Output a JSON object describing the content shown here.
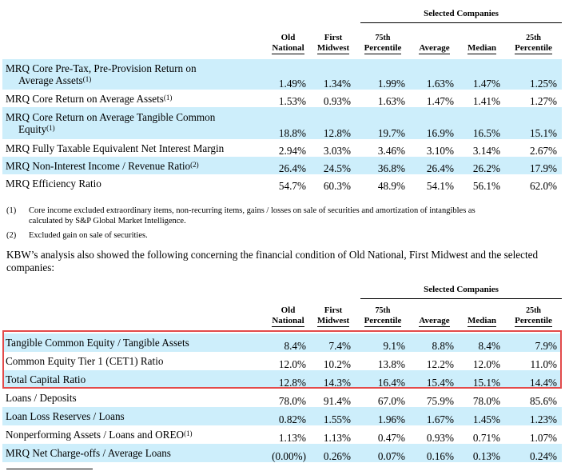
{
  "table1": {
    "group_header": "Selected Companies",
    "columns": [
      {
        "line1": "Old",
        "line2": "National"
      },
      {
        "line1": "First",
        "line2": "Midwest"
      },
      {
        "line1": "75th",
        "line2": "Percentile"
      },
      {
        "line1": "",
        "line2": "Average"
      },
      {
        "line1": "",
        "line2": "Median"
      },
      {
        "line1": "25th",
        "line2": "Percentile"
      }
    ],
    "rows": [
      {
        "label": "MRQ Core Pre-Tax, Pre-Provision Return on",
        "label2": "Average Assets",
        "sup": "(1)",
        "values": [
          "1.49%",
          "1.34%",
          "1.99%",
          "1.63%",
          "1.47%",
          "1.25%"
        ]
      },
      {
        "label": "MRQ Core Return on Average Assets",
        "sup": "(1)",
        "values": [
          "1.53%",
          "0.93%",
          "1.63%",
          "1.47%",
          "1.41%",
          "1.27%"
        ]
      },
      {
        "label": "MRQ Core Return on Average Tangible Common",
        "label2": "Equity",
        "sup": "(1)",
        "values": [
          "18.8%",
          "12.8%",
          "19.7%",
          "16.9%",
          "16.5%",
          "15.1%"
        ]
      },
      {
        "label": "MRQ Fully Taxable Equivalent Net Interest Margin",
        "sup": "",
        "values": [
          "2.94%",
          "3.03%",
          "3.46%",
          "3.10%",
          "3.14%",
          "2.67%"
        ]
      },
      {
        "label": "MRQ Non-Interest Income / Revenue Ratio",
        "sup": "(2)",
        "values": [
          "26.4%",
          "24.5%",
          "36.8%",
          "26.4%",
          "26.2%",
          "17.9%"
        ]
      },
      {
        "label": "MRQ Efficiency Ratio",
        "sup": "",
        "values": [
          "54.7%",
          "60.3%",
          "48.9%",
          "54.1%",
          "56.1%",
          "62.0%"
        ]
      }
    ]
  },
  "footnotes": [
    {
      "mark": "(1)",
      "text": "Core income excluded extraordinary items, non-recurring items, gains / losses on sale of securities and amortization of intangibles as",
      "text2": "calculated by S&P Global Market Intelligence."
    },
    {
      "mark": "(2)",
      "text": "Excluded gain on sale of securities."
    }
  ],
  "paragraph": "KBW’s analysis also showed the following concerning the financial condition of Old National, First Midwest and the selected companies:",
  "table2": {
    "group_header": "Selected Companies",
    "columns": [
      {
        "line1": "Old",
        "line2": "National"
      },
      {
        "line1": "First",
        "line2": "Midwest"
      },
      {
        "line1": "75th",
        "line2": "Percentile"
      },
      {
        "line1": "",
        "line2": "Average"
      },
      {
        "line1": "",
        "line2": "Median"
      },
      {
        "line1": "25th",
        "line2": "Percentile"
      }
    ],
    "rows": [
      {
        "label": "Tangible Common Equity / Tangible Assets",
        "sup": "",
        "values": [
          "8.4%",
          "7.4%",
          "9.1%",
          "8.8%",
          "8.4%",
          "7.9%"
        ]
      },
      {
        "label": "Common Equity Tier 1 (CET1) Ratio",
        "sup": "",
        "values": [
          "12.0%",
          "10.2%",
          "13.8%",
          "12.2%",
          "12.0%",
          "11.0%"
        ]
      },
      {
        "label": "Total Capital Ratio",
        "sup": "",
        "values": [
          "12.8%",
          "14.3%",
          "16.4%",
          "15.4%",
          "15.1%",
          "14.4%"
        ]
      },
      {
        "label": "Loans / Deposits",
        "sup": "",
        "values": [
          "78.0%",
          "91.4%",
          "67.0%",
          "75.9%",
          "78.0%",
          "85.6%"
        ]
      },
      {
        "label": "Loan Loss Reserves / Loans",
        "sup": "",
        "values": [
          "0.82%",
          "1.55%",
          "1.96%",
          "1.67%",
          "1.45%",
          "1.23%"
        ]
      },
      {
        "label": "Nonperforming Assets / Loans and OREO",
        "sup": "(1)",
        "values": [
          "1.13%",
          "1.13%",
          "0.47%",
          "0.93%",
          "0.71%",
          "1.07%"
        ]
      },
      {
        "label": "MRQ Net Charge-offs / Average Loans",
        "sup": "",
        "values": [
          "(0.00%)",
          "0.26%",
          "0.07%",
          "0.16%",
          "0.13%",
          "0.24%"
        ]
      }
    ]
  },
  "highlight_color": "#e34a4a",
  "shade_color": "#cdeefb"
}
